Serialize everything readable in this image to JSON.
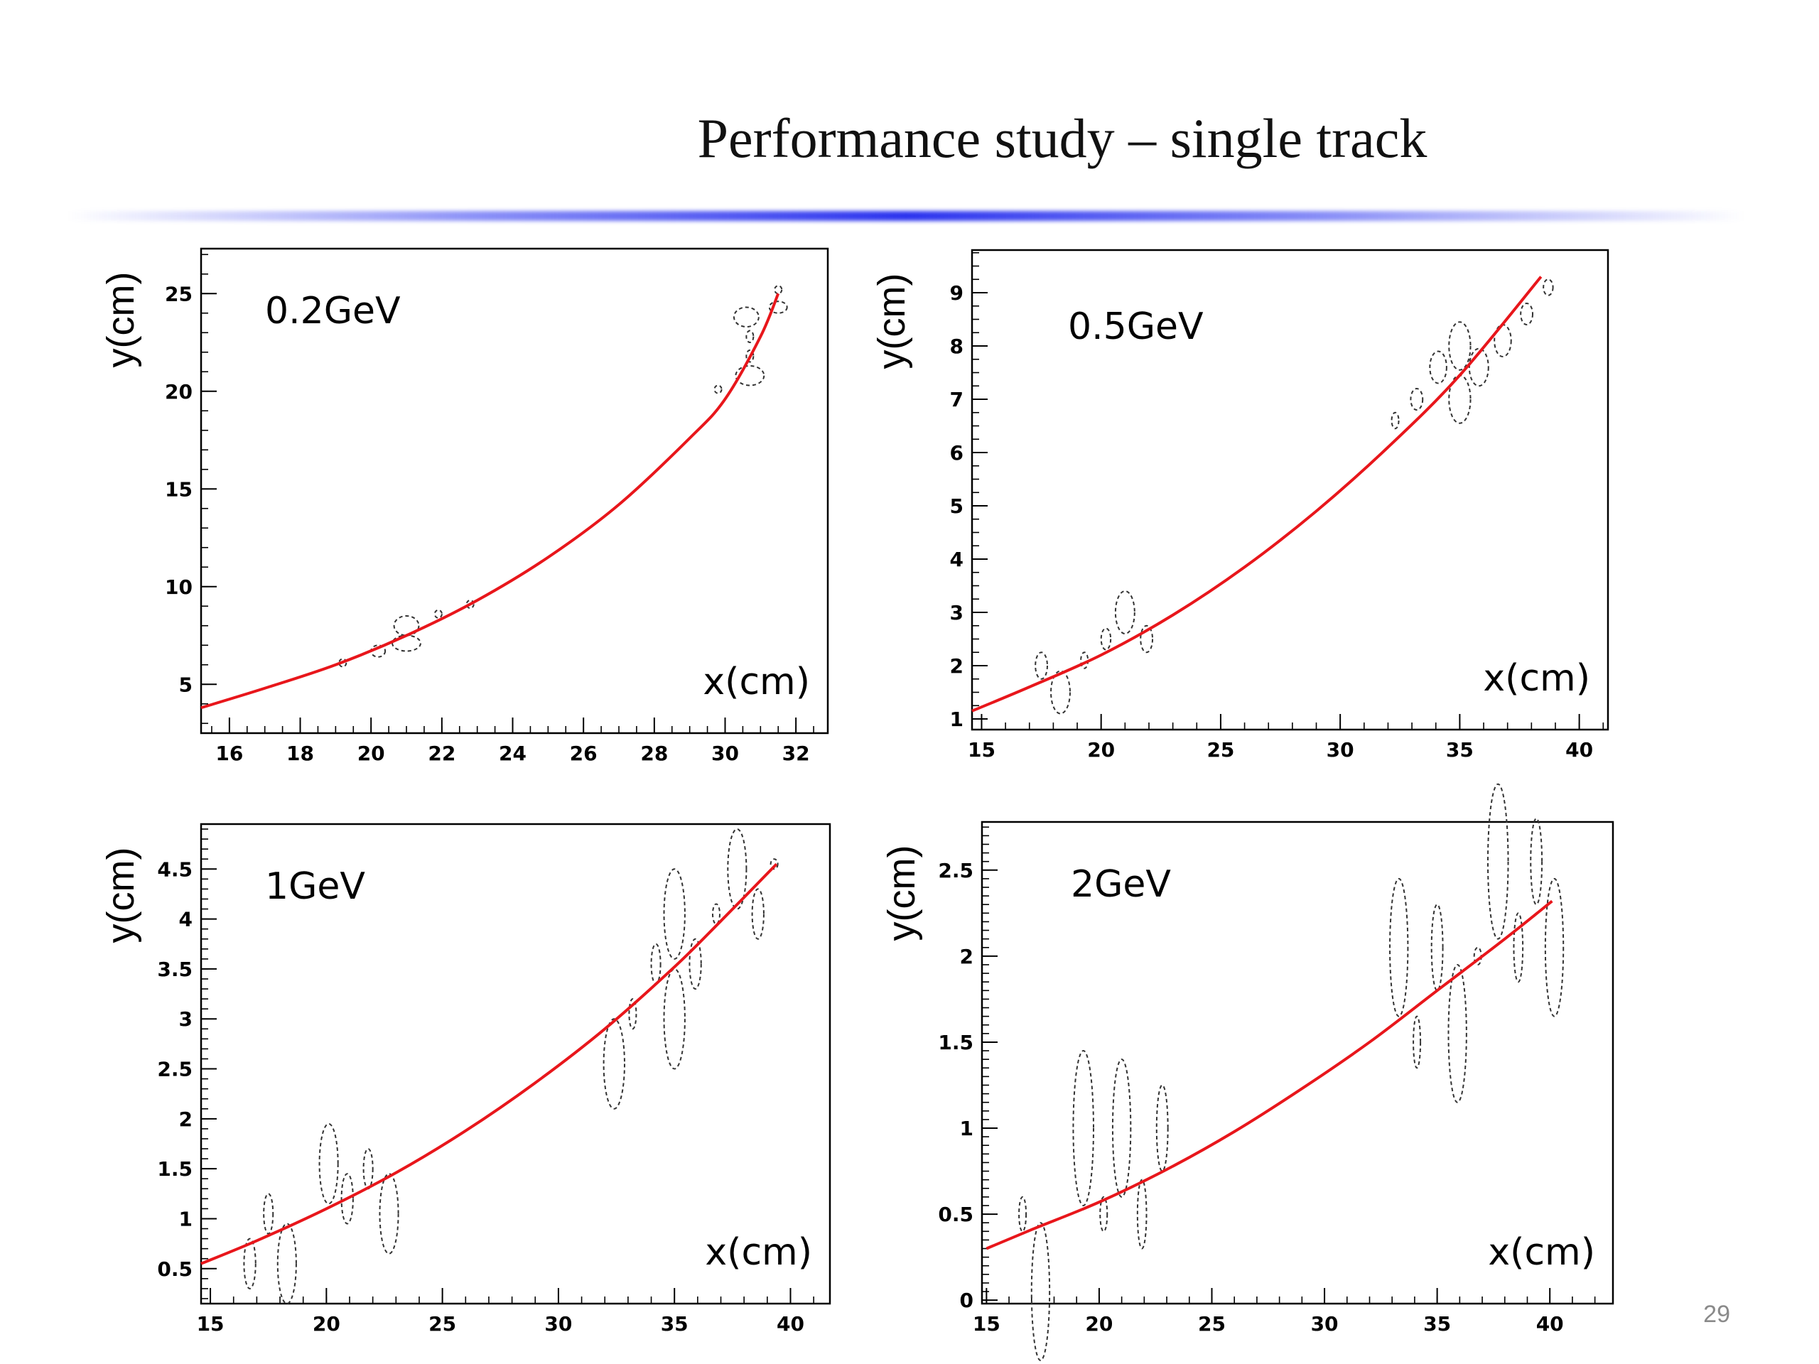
{
  "slide": {
    "title": "Performance study – single track",
    "page_number": "29"
  },
  "colors": {
    "fit_curve": "#e8161b",
    "title_rule": "#2c34ee",
    "ellipse": "#333333"
  },
  "chart_data": [
    {
      "type": "scatter",
      "title": "",
      "annotation": "0.2GeV",
      "xlabel": "x(cm)",
      "ylabel": "y(cm)",
      "xlim": [
        15.2,
        32.9
      ],
      "ylim": [
        2.5,
        27.3
      ],
      "xticks": [
        16,
        18,
        20,
        22,
        24,
        26,
        28,
        30,
        32
      ],
      "yticks": [
        5,
        10,
        15,
        20,
        25
      ],
      "xminor": 0.5,
      "yminor": 1,
      "fit_curve": [
        [
          15.2,
          3.8
        ],
        [
          17,
          4.8
        ],
        [
          19,
          6.0
        ],
        [
          21,
          7.5
        ],
        [
          23,
          9.3
        ],
        [
          25,
          11.5
        ],
        [
          27,
          14.2
        ],
        [
          29,
          17.6
        ],
        [
          30,
          19.6
        ],
        [
          31,
          22.8
        ],
        [
          31.5,
          25.0
        ]
      ],
      "hits": [
        {
          "x": 19.2,
          "y": 6.1,
          "rx": 0.1,
          "ry": 0.2
        },
        {
          "x": 20.2,
          "y": 6.7,
          "rx": 0.2,
          "ry": 0.3
        },
        {
          "x": 21.0,
          "y": 8.0,
          "rx": 0.35,
          "ry": 0.5
        },
        {
          "x": 21.0,
          "y": 7.1,
          "rx": 0.4,
          "ry": 0.4
        },
        {
          "x": 21.9,
          "y": 8.6,
          "rx": 0.1,
          "ry": 0.2
        },
        {
          "x": 22.8,
          "y": 9.1,
          "rx": 0.1,
          "ry": 0.2
        },
        {
          "x": 29.8,
          "y": 20.1,
          "rx": 0.1,
          "ry": 0.2
        },
        {
          "x": 30.7,
          "y": 20.8,
          "rx": 0.4,
          "ry": 0.5
        },
        {
          "x": 30.7,
          "y": 21.8,
          "rx": 0.1,
          "ry": 0.3
        },
        {
          "x": 30.7,
          "y": 22.8,
          "rx": 0.1,
          "ry": 0.3
        },
        {
          "x": 30.6,
          "y": 23.8,
          "rx": 0.35,
          "ry": 0.5
        },
        {
          "x": 31.5,
          "y": 24.3,
          "rx": 0.25,
          "ry": 0.3
        },
        {
          "x": 31.5,
          "y": 25.2,
          "rx": 0.1,
          "ry": 0.2
        }
      ],
      "grid": false
    },
    {
      "type": "scatter",
      "title": "",
      "annotation": "0.5GeV",
      "xlabel": "x(cm)",
      "ylabel": "y(cm)",
      "xlim": [
        14.6,
        41.2
      ],
      "ylim": [
        0.8,
        9.8
      ],
      "xticks": [
        15,
        20,
        25,
        30,
        35,
        40
      ],
      "yticks": [
        1,
        2,
        3,
        4,
        5,
        6,
        7,
        8,
        9
      ],
      "xminor": 1,
      "yminor": 0.25,
      "fit_curve": [
        [
          14.6,
          1.15
        ],
        [
          17,
          1.6
        ],
        [
          20,
          2.2
        ],
        [
          23,
          2.95
        ],
        [
          26,
          3.85
        ],
        [
          29,
          4.9
        ],
        [
          32,
          6.1
        ],
        [
          35,
          7.45
        ],
        [
          38.4,
          9.3
        ]
      ],
      "hits": [
        {
          "x": 17.5,
          "y": 2.0,
          "rx": 0.25,
          "ry": 0.25
        },
        {
          "x": 18.3,
          "y": 1.5,
          "rx": 0.4,
          "ry": 0.4
        },
        {
          "x": 19.3,
          "y": 2.1,
          "rx": 0.1,
          "ry": 0.15
        },
        {
          "x": 20.2,
          "y": 2.5,
          "rx": 0.2,
          "ry": 0.2
        },
        {
          "x": 21.0,
          "y": 3.0,
          "rx": 0.4,
          "ry": 0.4
        },
        {
          "x": 21.9,
          "y": 2.5,
          "rx": 0.25,
          "ry": 0.25
        },
        {
          "x": 32.3,
          "y": 6.6,
          "rx": 0.1,
          "ry": 0.15
        },
        {
          "x": 33.2,
          "y": 7.0,
          "rx": 0.25,
          "ry": 0.2
        },
        {
          "x": 34.1,
          "y": 7.6,
          "rx": 0.35,
          "ry": 0.3
        },
        {
          "x": 35.0,
          "y": 8.0,
          "rx": 0.45,
          "ry": 0.45
        },
        {
          "x": 35.0,
          "y": 7.0,
          "rx": 0.45,
          "ry": 0.45
        },
        {
          "x": 35.8,
          "y": 7.6,
          "rx": 0.4,
          "ry": 0.35
        },
        {
          "x": 36.8,
          "y": 8.1,
          "rx": 0.35,
          "ry": 0.3
        },
        {
          "x": 37.8,
          "y": 8.6,
          "rx": 0.25,
          "ry": 0.2
        },
        {
          "x": 38.7,
          "y": 9.1,
          "rx": 0.2,
          "ry": 0.15
        }
      ],
      "grid": false
    },
    {
      "type": "scatter",
      "title": "",
      "annotation": "1GeV",
      "xlabel": "x(cm)",
      "ylabel": "y(cm)",
      "xlim": [
        14.6,
        41.7
      ],
      "ylim": [
        0.15,
        4.95
      ],
      "xticks": [
        15,
        20,
        25,
        30,
        35,
        40
      ],
      "yticks": [
        0.5,
        1,
        1.5,
        2,
        2.5,
        3,
        3.5,
        4,
        4.5
      ],
      "xminor": 1,
      "yminor": 0.1,
      "fit_curve": [
        [
          14.6,
          0.55
        ],
        [
          17,
          0.78
        ],
        [
          20,
          1.1
        ],
        [
          23,
          1.46
        ],
        [
          26,
          1.88
        ],
        [
          29,
          2.36
        ],
        [
          32,
          2.9
        ],
        [
          35,
          3.52
        ],
        [
          37,
          3.98
        ],
        [
          39.4,
          4.55
        ]
      ],
      "hits": [
        {
          "x": 16.7,
          "y": 0.55,
          "rx": 0.25,
          "ry": 0.25
        },
        {
          "x": 17.5,
          "y": 1.05,
          "rx": 0.2,
          "ry": 0.2
        },
        {
          "x": 18.3,
          "y": 0.55,
          "rx": 0.4,
          "ry": 0.4
        },
        {
          "x": 20.1,
          "y": 1.55,
          "rx": 0.4,
          "ry": 0.4
        },
        {
          "x": 20.9,
          "y": 1.2,
          "rx": 0.25,
          "ry": 0.25
        },
        {
          "x": 21.8,
          "y": 1.5,
          "rx": 0.2,
          "ry": 0.2
        },
        {
          "x": 22.7,
          "y": 1.05,
          "rx": 0.4,
          "ry": 0.4
        },
        {
          "x": 32.4,
          "y": 2.55,
          "rx": 0.45,
          "ry": 0.45
        },
        {
          "x": 33.2,
          "y": 3.05,
          "rx": 0.15,
          "ry": 0.15
        },
        {
          "x": 34.2,
          "y": 3.55,
          "rx": 0.2,
          "ry": 0.2
        },
        {
          "x": 35.0,
          "y": 4.05,
          "rx": 0.45,
          "ry": 0.45
        },
        {
          "x": 35.0,
          "y": 3.0,
          "rx": 0.45,
          "ry": 0.5
        },
        {
          "x": 35.9,
          "y": 3.55,
          "rx": 0.25,
          "ry": 0.25
        },
        {
          "x": 36.8,
          "y": 4.05,
          "rx": 0.1,
          "ry": 0.1
        },
        {
          "x": 37.7,
          "y": 4.5,
          "rx": 0.4,
          "ry": 0.4
        },
        {
          "x": 38.6,
          "y": 4.05,
          "rx": 0.25,
          "ry": 0.25
        },
        {
          "x": 39.3,
          "y": 4.55,
          "rx": 0.1,
          "ry": 0.05
        }
      ],
      "grid": false
    },
    {
      "type": "scatter",
      "title": "",
      "annotation": "2GeV",
      "xlabel": "x(cm)",
      "ylabel": "y(cm)",
      "xlim": [
        14.8,
        42.8
      ],
      "ylim": [
        -0.02,
        2.78
      ],
      "xticks": [
        15,
        20,
        25,
        30,
        35,
        40
      ],
      "yticks": [
        0,
        0.5,
        1,
        1.5,
        2,
        2.5
      ],
      "xminor": 1,
      "yminor": 0.05,
      "fit_curve": [
        [
          15,
          0.3
        ],
        [
          17,
          0.41
        ],
        [
          20,
          0.57
        ],
        [
          23,
          0.76
        ],
        [
          26,
          0.98
        ],
        [
          29,
          1.23
        ],
        [
          32,
          1.5
        ],
        [
          35,
          1.8
        ],
        [
          38,
          2.1
        ],
        [
          40.1,
          2.32
        ]
      ],
      "hits": [
        {
          "x": 16.6,
          "y": 0.5,
          "rx": 0.1,
          "ry": 0.1
        },
        {
          "x": 17.4,
          "y": 0.05,
          "rx": 0.4,
          "ry": 0.4
        },
        {
          "x": 19.3,
          "y": 1.0,
          "rx": 0.45,
          "ry": 0.45
        },
        {
          "x": 20.2,
          "y": 0.5,
          "rx": 0.1,
          "ry": 0.1
        },
        {
          "x": 21.0,
          "y": 1.0,
          "rx": 0.4,
          "ry": 0.4
        },
        {
          "x": 21.9,
          "y": 0.5,
          "rx": 0.2,
          "ry": 0.2
        },
        {
          "x": 22.8,
          "y": 1.0,
          "rx": 0.25,
          "ry": 0.25
        },
        {
          "x": 33.3,
          "y": 2.05,
          "rx": 0.4,
          "ry": 0.4
        },
        {
          "x": 34.1,
          "y": 1.5,
          "rx": 0.15,
          "ry": 0.15
        },
        {
          "x": 35.0,
          "y": 2.05,
          "rx": 0.25,
          "ry": 0.25
        },
        {
          "x": 35.9,
          "y": 1.55,
          "rx": 0.4,
          "ry": 0.4
        },
        {
          "x": 36.8,
          "y": 2.0,
          "rx": 0.05,
          "ry": 0.05
        },
        {
          "x": 37.7,
          "y": 2.55,
          "rx": 0.45,
          "ry": 0.45
        },
        {
          "x": 38.6,
          "y": 2.05,
          "rx": 0.2,
          "ry": 0.2
        },
        {
          "x": 39.4,
          "y": 2.55,
          "rx": 0.25,
          "ry": 0.25
        },
        {
          "x": 40.2,
          "y": 2.05,
          "rx": 0.4,
          "ry": 0.4
        }
      ],
      "grid": false
    }
  ]
}
